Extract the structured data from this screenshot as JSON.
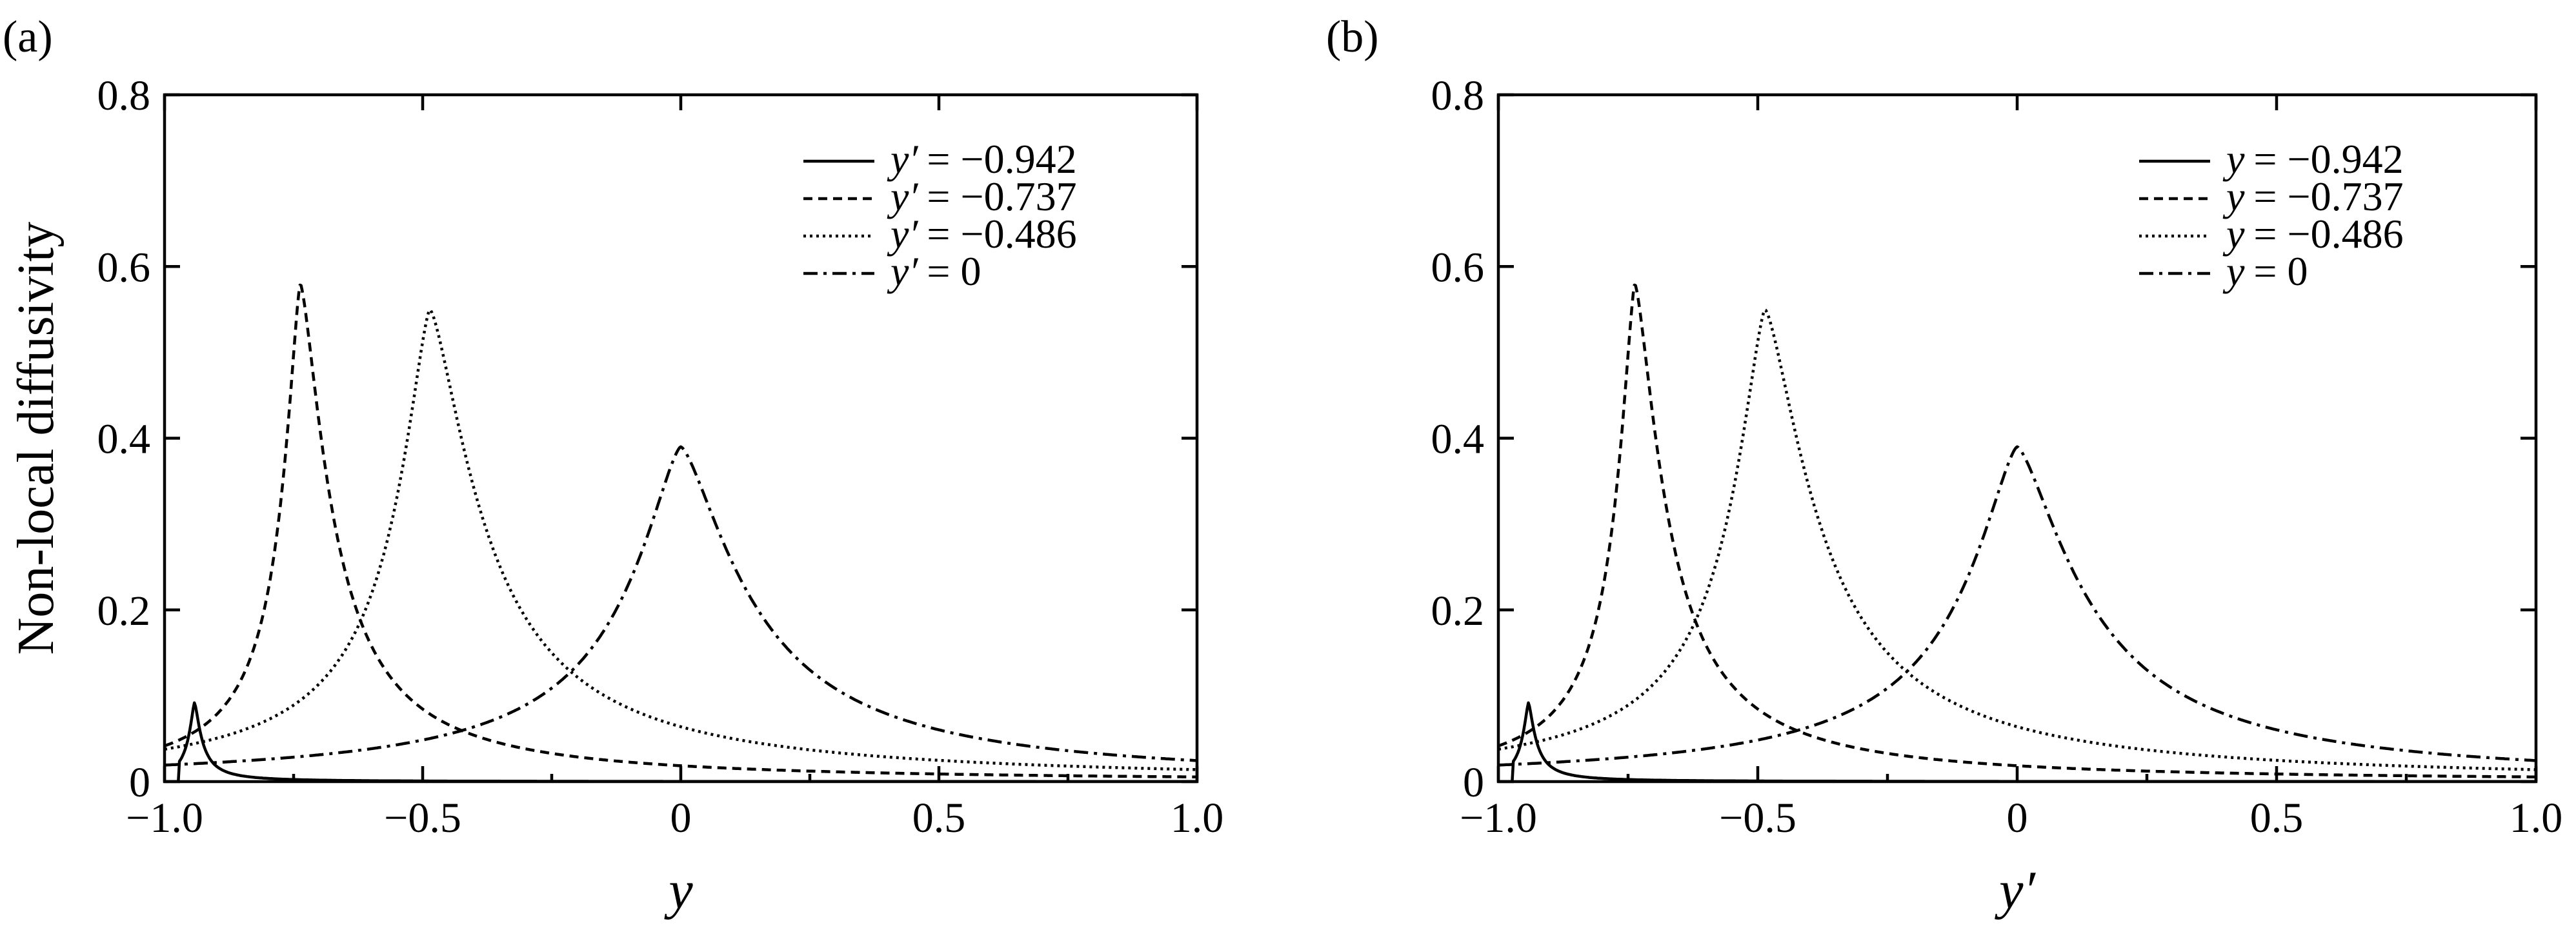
{
  "chart_data": [
    {
      "type": "line",
      "panel_label": "(a)",
      "xlabel": "y",
      "ylabel": "Non-local diffusivity",
      "xlim": [
        -1.0,
        1.0
      ],
      "ylim": [
        0,
        0.8
      ],
      "xticks": [
        "−1.0",
        "−0.5",
        "0",
        "0.5",
        "1.0"
      ],
      "yticks": [
        "0",
        "0.2",
        "0.4",
        "0.6",
        "0.8"
      ],
      "legend_position": "top-right",
      "grid": false,
      "series": [
        {
          "name": "y′ = −0.942",
          "legend_prefix": "y′",
          "legend_value": "= −0.942",
          "style": "solid",
          "peak_x": -0.942,
          "peak_y": 0.092
        },
        {
          "name": "y′ = −0.737",
          "legend_prefix": "y′",
          "legend_value": "= −0.737",
          "style": "dashed",
          "peak_x": -0.737,
          "peak_y": 0.58
        },
        {
          "name": "y′ = −0.486",
          "legend_prefix": "y′",
          "legend_value": "= −0.486",
          "style": "dotted",
          "peak_x": -0.486,
          "peak_y": 0.55
        },
        {
          "name": "y′ = 0",
          "legend_prefix": "y′",
          "legend_value": "= 0",
          "style": "dashdot",
          "peak_x": 0.0,
          "peak_y": 0.39
        }
      ]
    },
    {
      "type": "line",
      "panel_label": "(b)",
      "xlabel": "y′",
      "ylabel": "",
      "xlim": [
        -1.0,
        1.0
      ],
      "ylim": [
        0,
        0.8
      ],
      "xticks": [
        "−1.0",
        "−0.5",
        "0",
        "0.5",
        "1.0"
      ],
      "yticks": [
        "0",
        "0.2",
        "0.4",
        "0.6",
        "0.8"
      ],
      "legend_position": "top-right",
      "grid": false,
      "series": [
        {
          "name": "y = −0.942",
          "legend_prefix": "y",
          "legend_value": "= −0.942",
          "style": "solid",
          "peak_x": -0.942,
          "peak_y": 0.092
        },
        {
          "name": "y = −0.737",
          "legend_prefix": "y",
          "legend_value": "= −0.737",
          "style": "dashed",
          "peak_x": -0.737,
          "peak_y": 0.58
        },
        {
          "name": "y = −0.486",
          "legend_prefix": "y",
          "legend_value": "= −0.486",
          "style": "dotted",
          "peak_x": -0.486,
          "peak_y": 0.55
        },
        {
          "name": "y = 0",
          "legend_prefix": "y",
          "legend_value": "= 0",
          "style": "dashdot",
          "peak_x": 0.0,
          "peak_y": 0.39
        }
      ]
    }
  ]
}
